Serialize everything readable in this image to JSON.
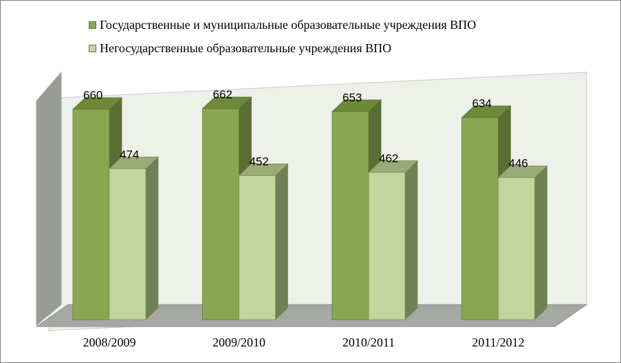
{
  "chart_data": {
    "type": "bar",
    "categories": [
      "2008/2009",
      "2009/2010",
      "2010/2011",
      "2011/2012"
    ],
    "series": [
      {
        "name": "Государственные  и муниципальные  образовательные учреждения ВПО",
        "values": [
          660,
          662,
          653,
          634
        ],
        "color": "#8aa652"
      },
      {
        "name": "Негосударственные  образовательные учреждения ВПО",
        "values": [
          474,
          452,
          462,
          446
        ],
        "color": "#c1d69c"
      }
    ],
    "legend_position": "top",
    "grid": false,
    "style": "3d-column"
  }
}
